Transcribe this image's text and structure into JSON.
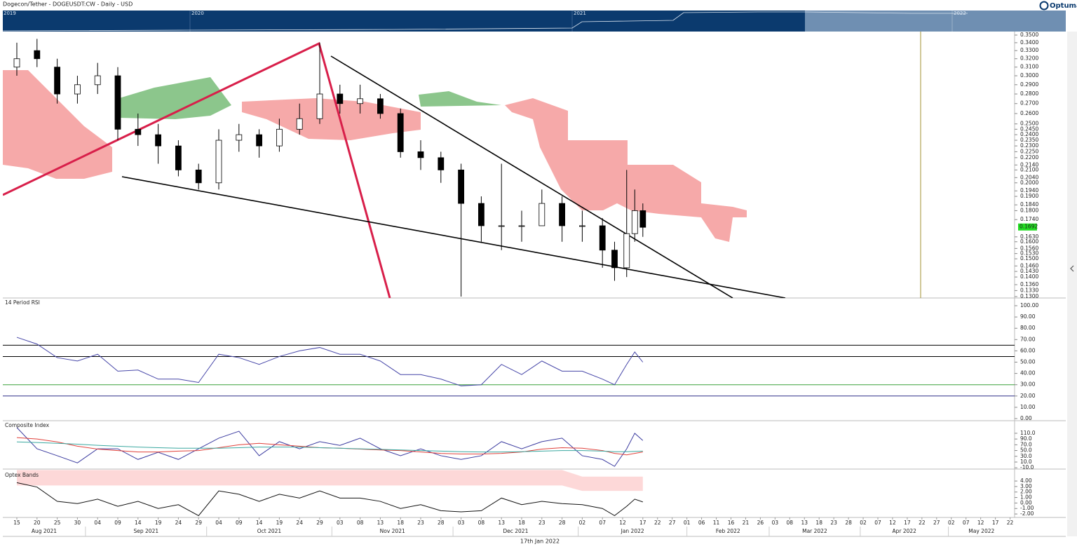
{
  "header": {
    "title": "Dogecon/Tether - DOGEUSDT:CW - Daily - USD",
    "brand": "Optuma"
  },
  "navigator": {
    "labels": [
      "2019",
      "2020",
      "2021",
      "2022"
    ]
  },
  "x_axis": {
    "ticks": [
      {
        "value": "2021-08-15",
        "label": "15"
      },
      {
        "value": "2021-08-20",
        "label": "20"
      },
      {
        "value": "2021-08-25",
        "label": "25"
      },
      {
        "value": "2021-08-30",
        "label": "30"
      },
      {
        "value": "2021-09-04",
        "label": "04"
      },
      {
        "value": "2021-09-09",
        "label": "09"
      },
      {
        "value": "2021-09-14",
        "label": "14"
      },
      {
        "value": "2021-09-19",
        "label": "19"
      },
      {
        "value": "2021-09-24",
        "label": "24"
      },
      {
        "value": "2021-09-29",
        "label": "29"
      },
      {
        "value": "2021-10-04",
        "label": "04"
      },
      {
        "value": "2021-10-09",
        "label": "09"
      },
      {
        "value": "2021-10-14",
        "label": "14"
      },
      {
        "value": "2021-10-19",
        "label": "19"
      },
      {
        "value": "2021-10-24",
        "label": "24"
      },
      {
        "value": "2021-10-29",
        "label": "29"
      },
      {
        "value": "2021-11-03",
        "label": "03"
      },
      {
        "value": "2021-11-08",
        "label": "08"
      },
      {
        "value": "2021-11-13",
        "label": "13"
      },
      {
        "value": "2021-11-18",
        "label": "18"
      },
      {
        "value": "2021-11-23",
        "label": "23"
      },
      {
        "value": "2021-11-28",
        "label": "28"
      },
      {
        "value": "2021-12-03",
        "label": "03"
      },
      {
        "value": "2021-12-08",
        "label": "08"
      },
      {
        "value": "2021-12-13",
        "label": "13"
      },
      {
        "value": "2021-12-18",
        "label": "18"
      },
      {
        "value": "2021-12-23",
        "label": "23"
      },
      {
        "value": "2021-12-28",
        "label": "28"
      },
      {
        "value": "2022-01-02",
        "label": "02"
      },
      {
        "value": "2022-01-07",
        "label": "07"
      },
      {
        "value": "2022-01-12",
        "label": "12"
      },
      {
        "value": "2022-01-17",
        "label": "17"
      },
      {
        "value": "2022-01-22",
        "label": "22"
      },
      {
        "value": "2022-01-27",
        "label": "27"
      },
      {
        "value": "2022-02-01",
        "label": "01"
      },
      {
        "value": "2022-02-06",
        "label": "06"
      },
      {
        "value": "2022-02-11",
        "label": "11"
      },
      {
        "value": "2022-02-16",
        "label": "16"
      },
      {
        "value": "2022-02-21",
        "label": "21"
      },
      {
        "value": "2022-02-26",
        "label": "26"
      },
      {
        "value": "2022-03-03",
        "label": "03"
      },
      {
        "value": "2022-03-08",
        "label": "08"
      },
      {
        "value": "2022-03-13",
        "label": "13"
      },
      {
        "value": "2022-03-18",
        "label": "18"
      },
      {
        "value": "2022-03-23",
        "label": "23"
      },
      {
        "value": "2022-03-28",
        "label": "28"
      },
      {
        "value": "2022-04-02",
        "label": "02"
      },
      {
        "value": "2022-04-07",
        "label": "07"
      },
      {
        "value": "2022-04-12",
        "label": "12"
      },
      {
        "value": "2022-04-17",
        "label": "17"
      },
      {
        "value": "2022-04-22",
        "label": "22"
      },
      {
        "value": "2022-04-27",
        "label": "27"
      },
      {
        "value": "2022-05-02",
        "label": "02"
      },
      {
        "value": "2022-05-07",
        "label": "07"
      },
      {
        "value": "2022-05-12",
        "label": "12"
      },
      {
        "value": "2022-05-17",
        "label": "17"
      },
      {
        "value": "2022-05-22",
        "label": "22"
      }
    ],
    "months": [
      {
        "value": "2021-08",
        "label": "Aug 2021"
      },
      {
        "value": "2021-09",
        "label": "Sep 2021"
      },
      {
        "value": "2021-10",
        "label": "Oct 2021"
      },
      {
        "value": "2021-11",
        "label": "Nov 2021"
      },
      {
        "value": "2021-12",
        "label": "Dec 2021"
      },
      {
        "value": "2022-01",
        "label": "Jan 2022"
      },
      {
        "value": "2022-02",
        "label": "Feb 2022"
      },
      {
        "value": "2022-03",
        "label": "Mar 2022"
      },
      {
        "value": "2022-04",
        "label": "Apr 2022"
      },
      {
        "value": "2022-05",
        "label": "May 2022"
      }
    ],
    "cursor_label": "17th Jan 2022"
  },
  "chart_data": [
    {
      "type": "candlestick",
      "x": [
        "2021-08-15",
        "2021-08-20",
        "2021-08-25",
        "2021-08-30",
        "2021-09-04",
        "2021-09-09",
        "2021-09-14",
        "2021-09-19",
        "2021-09-24",
        "2021-09-29",
        "2021-10-04",
        "2021-10-09",
        "2021-10-14",
        "2021-10-19",
        "2021-10-24",
        "2021-10-29",
        "2021-11-03",
        "2021-11-08",
        "2021-11-13",
        "2021-11-18",
        "2021-11-23",
        "2021-11-28",
        "2021-12-03",
        "2021-12-08",
        "2021-12-13",
        "2021-12-18",
        "2021-12-23",
        "2021-12-28",
        "2022-01-02",
        "2022-01-07",
        "2022-01-10",
        "2022-01-13",
        "2022-01-15",
        "2022-01-17"
      ],
      "open": [
        0.31,
        0.33,
        0.31,
        0.28,
        0.29,
        0.3,
        0.245,
        0.24,
        0.23,
        0.21,
        0.2,
        0.235,
        0.24,
        0.23,
        0.245,
        0.255,
        0.28,
        0.27,
        0.275,
        0.26,
        0.225,
        0.22,
        0.21,
        0.185,
        0.17,
        0.17,
        0.17,
        0.185,
        0.17,
        0.17,
        0.155,
        0.145,
        0.165,
        0.18
      ],
      "high": [
        0.34,
        0.345,
        0.32,
        0.3,
        0.315,
        0.31,
        0.26,
        0.25,
        0.235,
        0.215,
        0.245,
        0.25,
        0.245,
        0.255,
        0.27,
        0.34,
        0.29,
        0.29,
        0.28,
        0.265,
        0.235,
        0.225,
        0.215,
        0.19,
        0.215,
        0.18,
        0.195,
        0.19,
        0.18,
        0.175,
        0.16,
        0.21,
        0.195,
        0.185
      ],
      "low": [
        0.3,
        0.31,
        0.27,
        0.27,
        0.28,
        0.235,
        0.23,
        0.215,
        0.205,
        0.195,
        0.195,
        0.225,
        0.22,
        0.225,
        0.24,
        0.25,
        0.26,
        0.26,
        0.255,
        0.22,
        0.21,
        0.2,
        0.13,
        0.16,
        0.155,
        0.16,
        0.17,
        0.16,
        0.16,
        0.145,
        0.138,
        0.14,
        0.16,
        0.163
      ],
      "close": [
        0.32,
        0.32,
        0.28,
        0.29,
        0.3,
        0.245,
        0.24,
        0.23,
        0.21,
        0.2,
        0.235,
        0.24,
        0.23,
        0.245,
        0.255,
        0.28,
        0.27,
        0.275,
        0.26,
        0.225,
        0.22,
        0.21,
        0.185,
        0.17,
        0.17,
        0.17,
        0.185,
        0.17,
        0.17,
        0.155,
        0.145,
        0.165,
        0.18,
        0.169
      ],
      "log_scale": true,
      "ylim": [
        0.13,
        0.35
      ],
      "yticks": [
        {
          "value": 0.35,
          "label": "0.3500"
        },
        {
          "value": 0.34,
          "label": "0.3400"
        },
        {
          "value": 0.33,
          "label": "0.3300"
        },
        {
          "value": 0.32,
          "label": "0.3200"
        },
        {
          "value": 0.31,
          "label": "0.3100"
        },
        {
          "value": 0.3,
          "label": "0.3000"
        },
        {
          "value": 0.29,
          "label": "0.2900"
        },
        {
          "value": 0.28,
          "label": "0.2800"
        },
        {
          "value": 0.27,
          "label": "0.2700"
        },
        {
          "value": 0.26,
          "label": "0.2600"
        },
        {
          "value": 0.25,
          "label": "0.2500"
        },
        {
          "value": 0.245,
          "label": "0.2450"
        },
        {
          "value": 0.24,
          "label": "0.2400"
        },
        {
          "value": 0.235,
          "label": "0.2350"
        },
        {
          "value": 0.23,
          "label": "0.2300"
        },
        {
          "value": 0.225,
          "label": "0.2250"
        },
        {
          "value": 0.22,
          "label": "0.2200"
        },
        {
          "value": 0.214,
          "label": "0.2140"
        },
        {
          "value": 0.21,
          "label": "0.2100"
        },
        {
          "value": 0.204,
          "label": "0.2040"
        },
        {
          "value": 0.2,
          "label": "0.2000"
        },
        {
          "value": 0.194,
          "label": "0.1940"
        },
        {
          "value": 0.19,
          "label": "0.1900"
        },
        {
          "value": 0.184,
          "label": "0.1840"
        },
        {
          "value": 0.18,
          "label": "0.1800"
        },
        {
          "value": 0.174,
          "label": "0.1740"
        },
        {
          "value": 0.163,
          "label": "0.1630"
        },
        {
          "value": 0.16,
          "label": "0.1600"
        },
        {
          "value": 0.156,
          "label": "0.1560"
        },
        {
          "value": 0.153,
          "label": "0.1530"
        },
        {
          "value": 0.15,
          "label": "0.1500"
        },
        {
          "value": 0.146,
          "label": "0.1460"
        },
        {
          "value": 0.143,
          "label": "0.1430"
        },
        {
          "value": 0.14,
          "label": "0.1400"
        },
        {
          "value": 0.136,
          "label": "0.1360"
        },
        {
          "value": 0.133,
          "label": "0.1330"
        },
        {
          "value": 0.13,
          "label": "0.1300"
        }
      ],
      "last_price": 0.1692,
      "last_price_color": "#22dd22"
    },
    {
      "type": "line",
      "title": "14 Period RSI",
      "x": [
        "2021-08-15",
        "2021-08-20",
        "2021-08-25",
        "2021-08-30",
        "2021-09-04",
        "2021-09-09",
        "2021-09-14",
        "2021-09-19",
        "2021-09-24",
        "2021-09-29",
        "2021-10-04",
        "2021-10-09",
        "2021-10-14",
        "2021-10-19",
        "2021-10-24",
        "2021-10-29",
        "2021-11-03",
        "2021-11-08",
        "2021-11-13",
        "2021-11-18",
        "2021-11-23",
        "2021-11-28",
        "2021-12-03",
        "2021-12-08",
        "2021-12-13",
        "2021-12-18",
        "2021-12-23",
        "2021-12-28",
        "2022-01-02",
        "2022-01-07",
        "2022-01-10",
        "2022-01-13",
        "2022-01-15",
        "2022-01-17"
      ],
      "series": [
        {
          "color": "#4646a8",
          "values": [
            72,
            66,
            54,
            51,
            57,
            42,
            43,
            35,
            35,
            32,
            57,
            54,
            48,
            55,
            60,
            63,
            57,
            57,
            51,
            39,
            39,
            35,
            29,
            30,
            48,
            39,
            51,
            42,
            42,
            35,
            30,
            48,
            59,
            50
          ]
        }
      ],
      "ylim": [
        0,
        100
      ],
      "yticks": [
        {
          "value": 100,
          "label": "100.00"
        },
        {
          "value": 90,
          "label": "90.00"
        },
        {
          "value": 80,
          "label": "80.00"
        },
        {
          "value": 70,
          "label": "70.00"
        },
        {
          "value": 60,
          "label": "60.00"
        },
        {
          "value": 50,
          "label": "50.00"
        },
        {
          "value": 40,
          "label": "40.00"
        },
        {
          "value": 30,
          "label": "30.00"
        },
        {
          "value": 20,
          "label": "20.00"
        },
        {
          "value": 10,
          "label": "10.00"
        },
        {
          "value": 0,
          "label": "0.00"
        }
      ],
      "levels": [
        {
          "value": 65,
          "color": "#000000"
        },
        {
          "value": 55,
          "color": "#000000"
        },
        {
          "value": 30,
          "color": "#3aa03a"
        },
        {
          "value": 20,
          "color": "#30308a"
        }
      ]
    },
    {
      "type": "line",
      "title": "Composite Index",
      "x": [
        "2021-08-15",
        "2021-08-20",
        "2021-08-25",
        "2021-08-30",
        "2021-09-04",
        "2021-09-09",
        "2021-09-14",
        "2021-09-19",
        "2021-09-24",
        "2021-09-29",
        "2021-10-04",
        "2021-10-09",
        "2021-10-14",
        "2021-10-19",
        "2021-10-24",
        "2021-10-29",
        "2021-11-03",
        "2021-11-08",
        "2021-11-13",
        "2021-11-18",
        "2021-11-23",
        "2021-11-28",
        "2021-12-03",
        "2021-12-08",
        "2021-12-13",
        "2021-12-18",
        "2021-12-23",
        "2021-12-28",
        "2022-01-02",
        "2022-01-07",
        "2022-01-10",
        "2022-01-13",
        "2022-01-15",
        "2022-01-17"
      ],
      "series": [
        {
          "color": "#3c3ca0",
          "values": [
            130,
            56,
            32,
            7,
            56,
            56,
            19,
            44,
            19,
            56,
            93,
            117,
            32,
            81,
            56,
            81,
            68,
            93,
            56,
            32,
            56,
            32,
            19,
            32,
            81,
            56,
            81,
            93,
            32,
            19,
            -5,
            56,
            110,
            85
          ]
        },
        {
          "color": "#e0403a",
          "values": [
            95,
            90,
            80,
            65,
            55,
            50,
            45,
            45,
            48,
            50,
            60,
            70,
            75,
            70,
            65,
            60,
            58,
            55,
            52,
            50,
            45,
            40,
            38,
            38,
            40,
            45,
            55,
            60,
            58,
            50,
            40,
            35,
            40,
            45
          ]
        },
        {
          "color": "#3aa8a0",
          "values": [
            80,
            78,
            75,
            72,
            68,
            65,
            62,
            60,
            58,
            58,
            58,
            60,
            62,
            62,
            62,
            60,
            58,
            56,
            54,
            52,
            50,
            48,
            46,
            45,
            45,
            46,
            48,
            50,
            50,
            48,
            46,
            46,
            47,
            48
          ]
        }
      ],
      "ylim": [
        -12,
        144
      ],
      "yticks": [
        {
          "value": 110,
          "label": "110.0"
        },
        {
          "value": 90,
          "label": "90.0"
        },
        {
          "value": 70,
          "label": "70.0"
        },
        {
          "value": 50,
          "label": "50.0"
        },
        {
          "value": 30,
          "label": "30.0"
        },
        {
          "value": 10,
          "label": "10.0"
        },
        {
          "value": -10,
          "label": "-10.0"
        }
      ]
    },
    {
      "type": "line",
      "title": "Optex Bands",
      "x": [
        "2021-08-15",
        "2021-08-20",
        "2021-08-25",
        "2021-08-30",
        "2021-09-04",
        "2021-09-09",
        "2021-09-14",
        "2021-09-19",
        "2021-09-24",
        "2021-09-29",
        "2021-10-04",
        "2021-10-09",
        "2021-10-14",
        "2021-10-19",
        "2021-10-24",
        "2021-10-29",
        "2021-11-03",
        "2021-11-08",
        "2021-11-13",
        "2021-11-18",
        "2021-11-23",
        "2021-11-28",
        "2021-12-03",
        "2021-12-08",
        "2021-12-13",
        "2021-12-18",
        "2021-12-23",
        "2021-12-28",
        "2022-01-02",
        "2022-01-07",
        "2022-01-10",
        "2022-01-13",
        "2022-01-15",
        "2022-01-17"
      ],
      "series": [
        {
          "color": "#111111",
          "values": [
            3.7,
            2.9,
            0.3,
            -0.1,
            0.7,
            -0.6,
            0.3,
            -1.0,
            -0.3,
            -2.3,
            2.2,
            1.6,
            0.3,
            1.6,
            0.9,
            2.2,
            0.9,
            0.9,
            0.3,
            -1.0,
            -0.3,
            -1.4,
            -1.6,
            -1.4,
            0.9,
            -0.3,
            0.3,
            -0.1,
            -0.3,
            -1.0,
            -2.3,
            -0.6,
            0.7,
            0.2
          ]
        }
      ],
      "band": {
        "color": "#fdd8d8",
        "upper": [
          6,
          6,
          6,
          6,
          6,
          6,
          6,
          6,
          6,
          6,
          6,
          6,
          6,
          6,
          6,
          6,
          6,
          6,
          6,
          6,
          6,
          6,
          6,
          6,
          6,
          6,
          6,
          6,
          4.8,
          4.8,
          4.8,
          4.8,
          4.8,
          4.8
        ],
        "lower": [
          3.2,
          3.2,
          3.2,
          3.2,
          3.2,
          3.2,
          3.2,
          3.2,
          3.2,
          3.2,
          3.2,
          3.2,
          3.2,
          3.2,
          3.2,
          3.2,
          3.2,
          3.2,
          3.2,
          3.2,
          3.2,
          3.2,
          3.2,
          3.2,
          3.2,
          3.2,
          3.2,
          3.2,
          2.2,
          2.2,
          2.2,
          2.2,
          2.2,
          2.2
        ]
      },
      "ylim": [
        -2.5,
        6.05
      ],
      "yticks": [
        {
          "value": 4,
          "label": "4.00"
        },
        {
          "value": 3,
          "label": "3.00"
        },
        {
          "value": 2,
          "label": "2.00"
        },
        {
          "value": 1,
          "label": "1.00"
        },
        {
          "value": 0,
          "label": "0.00"
        },
        {
          "value": -1,
          "label": "-1.00"
        },
        {
          "value": -2,
          "label": "-2.00"
        }
      ]
    }
  ]
}
